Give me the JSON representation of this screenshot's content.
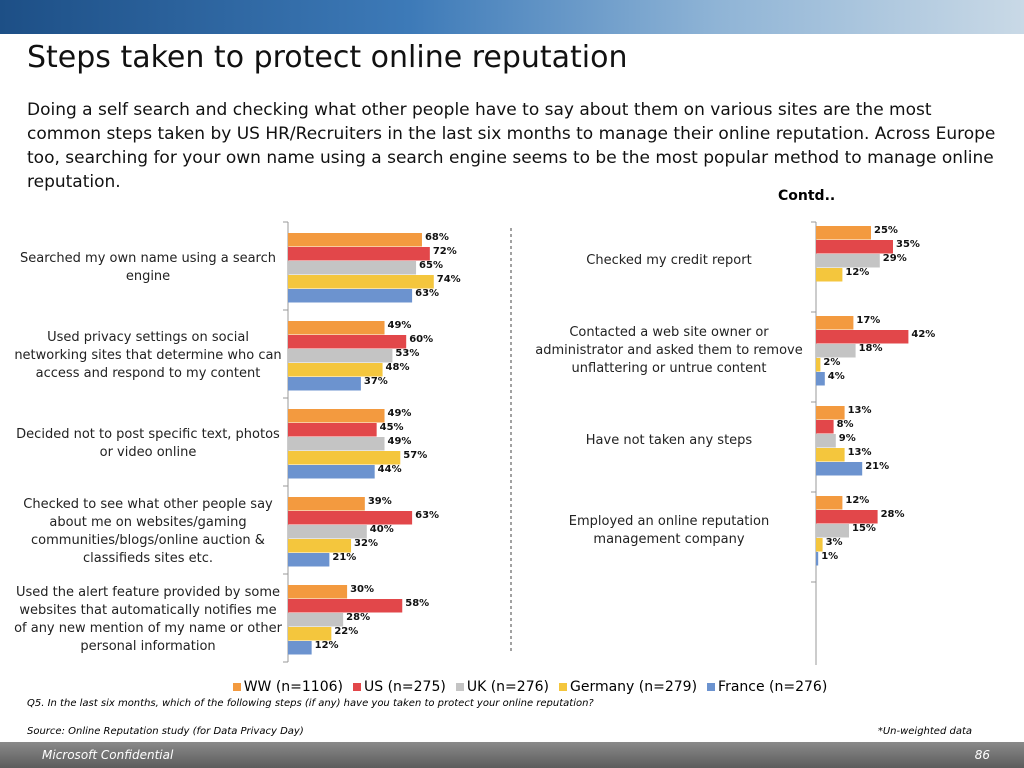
{
  "title": "Steps taken to protect online reputation",
  "subtitle": "Doing a self search and checking what other people have to say about them on various sites are the most common steps taken by US HR/Recruiters in the last six months to manage their online reputation. Across Europe too, searching for your own name using a search engine seems to be the most popular method to manage online reputation.",
  "contd": "Contd..",
  "chart_data": [
    {
      "type": "hbar",
      "categories": [
        "Searched my own name using a search engine",
        "Used privacy settings on social networking sites that determine who can access and respond to my content",
        "Decided not to post specific text, photos or video online",
        "Checked to see what other people say about me on websites/gaming communities/blogs/online auction & classifieds sites etc.",
        "Used the alert feature provided by some websites that automatically notifies me of any new mention of my name or other personal information"
      ],
      "series": [
        {
          "name": "WW (n=1106)",
          "color": "#f39a3f",
          "values": [
            68,
            49,
            49,
            39,
            30
          ],
          "value_labels": [
            "68%",
            "49%",
            "49%",
            "39%",
            "30%"
          ]
        },
        {
          "name": "US (n=275)",
          "color": "#e2474a",
          "values": [
            72,
            60,
            45,
            63,
            58
          ],
          "value_labels": [
            "72%",
            "60%",
            "45%",
            "63%",
            "58%"
          ]
        },
        {
          "name": "UK (n=276)",
          "color": "#c4c4c4",
          "values": [
            65,
            53,
            49,
            40,
            28
          ],
          "value_labels": [
            "65%",
            "53%",
            "49%",
            "40%",
            "28%"
          ]
        },
        {
          "name": "Germany (n=279)",
          "color": "#f4c63d",
          "values": [
            74,
            48,
            57,
            32,
            22
          ],
          "value_labels": [
            "74%",
            "48%",
            "57%",
            "32%",
            "22%"
          ]
        },
        {
          "name": "France (n=276)",
          "color": "#6c93cf",
          "values": [
            63,
            37,
            44,
            21,
            12
          ],
          "value_labels": [
            "63%",
            "37%",
            "44%",
            "21%",
            "12%"
          ]
        }
      ]
    },
    {
      "type": "hbar",
      "categories": [
        "Checked my credit report",
        "Contacted a web site owner or administrator and asked them to remove unflattering or untrue content",
        "Have not taken any steps",
        "Employed an online reputation management company"
      ],
      "series": [
        {
          "color": "#f39a3f",
          "values": [
            25,
            17,
            13,
            12
          ],
          "value_labels": [
            "25%",
            "17%",
            "13%",
            "12%"
          ]
        },
        {
          "color": "#e2474a",
          "values": [
            35,
            42,
            8,
            28
          ],
          "value_labels": [
            "35%",
            "42%",
            "8%",
            "28%"
          ]
        },
        {
          "color": "#c4c4c4",
          "values": [
            29,
            18,
            9,
            15
          ],
          "value_labels": [
            "29%",
            "18%",
            "9%",
            "15%"
          ]
        },
        {
          "color": "#f4c63d",
          "values": [
            12,
            2,
            13,
            3
          ],
          "value_labels": [
            "12%",
            "2%",
            "13%",
            "3%"
          ]
        },
        {
          "color": "#6c93cf",
          "values": [
            null,
            4,
            21,
            1
          ],
          "value_labels": [
            null,
            "4%",
            "21%",
            "1%"
          ]
        }
      ]
    }
  ],
  "question": "Q5. In the last six months, which of the following steps (if any) have you taken to protect your online reputation?",
  "source": "Source: Online Reputation study (for Data Privacy Day)",
  "note": "*Un-weighted data",
  "footer": "Microsoft Confidential",
  "page_number": "86"
}
